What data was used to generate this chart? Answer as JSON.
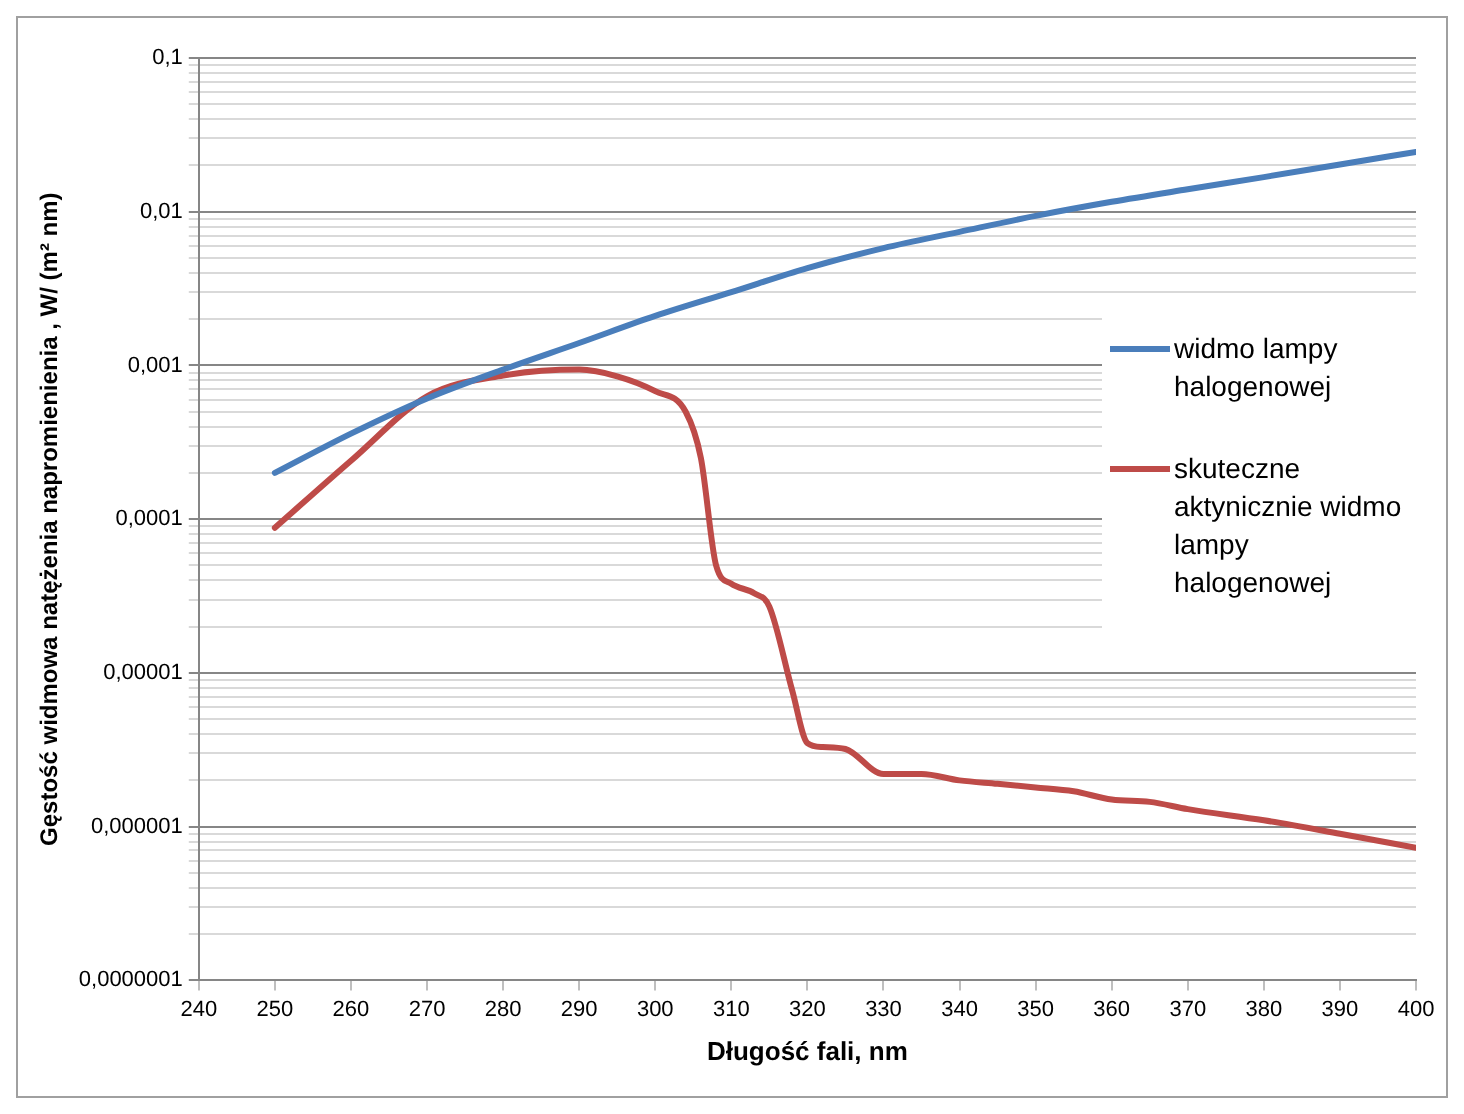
{
  "chart_data": {
    "type": "line",
    "xlabel": "Długość fali, nm",
    "ylabel": "Gęstość widmowa natężenia napromienienia , W/ (m² nm)",
    "log": "y",
    "grid": "y",
    "legend": "right",
    "marker": "none",
    "line_style": "solid",
    "xlim": [
      240,
      400
    ],
    "xticks": [
      240,
      250,
      260,
      270,
      280,
      290,
      300,
      310,
      320,
      330,
      340,
      350,
      360,
      370,
      380,
      390,
      400
    ],
    "ylim": [
      1e-07,
      0.1
    ],
    "yticks": [
      {
        "value": 1e-07,
        "label": "0,0000001"
      },
      {
        "value": 2e-07,
        "label": null
      },
      {
        "value": 3e-07,
        "label": null
      },
      {
        "value": 4e-07,
        "label": null
      },
      {
        "value": 5e-07,
        "label": null
      },
      {
        "value": 6e-07,
        "label": null
      },
      {
        "value": 7e-07,
        "label": null
      },
      {
        "value": 8e-07,
        "label": null
      },
      {
        "value": 9e-07,
        "label": null
      },
      {
        "value": 1e-06,
        "label": "0,000001"
      },
      {
        "value": 2e-06,
        "label": null
      },
      {
        "value": 3e-06,
        "label": null
      },
      {
        "value": 4e-06,
        "label": null
      },
      {
        "value": 5e-06,
        "label": null
      },
      {
        "value": 6e-06,
        "label": null
      },
      {
        "value": 7e-06,
        "label": null
      },
      {
        "value": 8e-06,
        "label": null
      },
      {
        "value": 9e-06,
        "label": null
      },
      {
        "value": 1e-05,
        "label": "0,00001"
      },
      {
        "value": 2e-05,
        "label": null
      },
      {
        "value": 3e-05,
        "label": null
      },
      {
        "value": 4e-05,
        "label": null
      },
      {
        "value": 5e-05,
        "label": null
      },
      {
        "value": 6e-05,
        "label": null
      },
      {
        "value": 7e-05,
        "label": null
      },
      {
        "value": 8e-05,
        "label": null
      },
      {
        "value": 9e-05,
        "label": null
      },
      {
        "value": 0.0001,
        "label": "0,0001"
      },
      {
        "value": 0.0002,
        "label": null
      },
      {
        "value": 0.0003,
        "label": null
      },
      {
        "value": 0.0004,
        "label": null
      },
      {
        "value": 0.0005,
        "label": null
      },
      {
        "value": 0.0006,
        "label": null
      },
      {
        "value": 0.0007,
        "label": null
      },
      {
        "value": 0.0008,
        "label": null
      },
      {
        "value": 0.0009,
        "label": null
      },
      {
        "value": 0.001,
        "label": "0,001"
      },
      {
        "value": 0.002,
        "label": null
      },
      {
        "value": 0.003,
        "label": null
      },
      {
        "value": 0.004,
        "label": null
      },
      {
        "value": 0.005,
        "label": null
      },
      {
        "value": 0.006,
        "label": null
      },
      {
        "value": 0.007,
        "label": null
      },
      {
        "value": 0.008,
        "label": null
      },
      {
        "value": 0.009,
        "label": null
      },
      {
        "value": 0.01,
        "label": "0,01"
      },
      {
        "value": 0.02,
        "label": null
      },
      {
        "value": 0.03,
        "label": null
      },
      {
        "value": 0.04,
        "label": null
      },
      {
        "value": 0.05,
        "label": null
      },
      {
        "value": 0.06,
        "label": null
      },
      {
        "value": 0.07,
        "label": null
      },
      {
        "value": 0.08,
        "label": null
      },
      {
        "value": 0.09,
        "label": null
      },
      {
        "value": 0.1,
        "label": "0,1"
      }
    ],
    "series": [
      {
        "name": "widmo lampy halogenowej",
        "color": "#4a7ebb",
        "x": [
          250,
          260,
          270,
          280,
          290,
          300,
          310,
          320,
          330,
          340,
          350,
          360,
          370,
          380,
          390,
          400
        ],
        "values": [
          0.0002,
          0.00036,
          0.00061,
          0.00094,
          0.0014,
          0.0021,
          0.003,
          0.0043,
          0.0058,
          0.0074,
          0.0094,
          0.0116,
          0.014,
          0.0168,
          0.0203,
          0.0245
        ]
      },
      {
        "name": "skuteczne aktynicznie widmo lampy halogenowej",
        "color": "#be4b48",
        "x": [
          250,
          260,
          270,
          280,
          290,
          295,
          300,
          304,
          306,
          308,
          310,
          313,
          315,
          318,
          320,
          322,
          325,
          330,
          335,
          340,
          345,
          350,
          355,
          360,
          365,
          370,
          380,
          390,
          400
        ],
        "values": [
          8.8e-05,
          0.00024,
          0.00063,
          0.00086,
          0.00094,
          0.00085,
          0.00068,
          0.0005,
          0.00025,
          5e-05,
          3.8e-05,
          3.3e-05,
          2.7e-05,
          7.7e-06,
          3.5e-06,
          3.3e-06,
          3.2e-06,
          2.2e-06,
          2.2e-06,
          2e-06,
          1.9e-06,
          1.8e-06,
          1.7e-06,
          1.5e-06,
          1.45e-06,
          1.3e-06,
          1.1e-06,
          9e-07,
          7.3e-07
        ]
      }
    ]
  }
}
